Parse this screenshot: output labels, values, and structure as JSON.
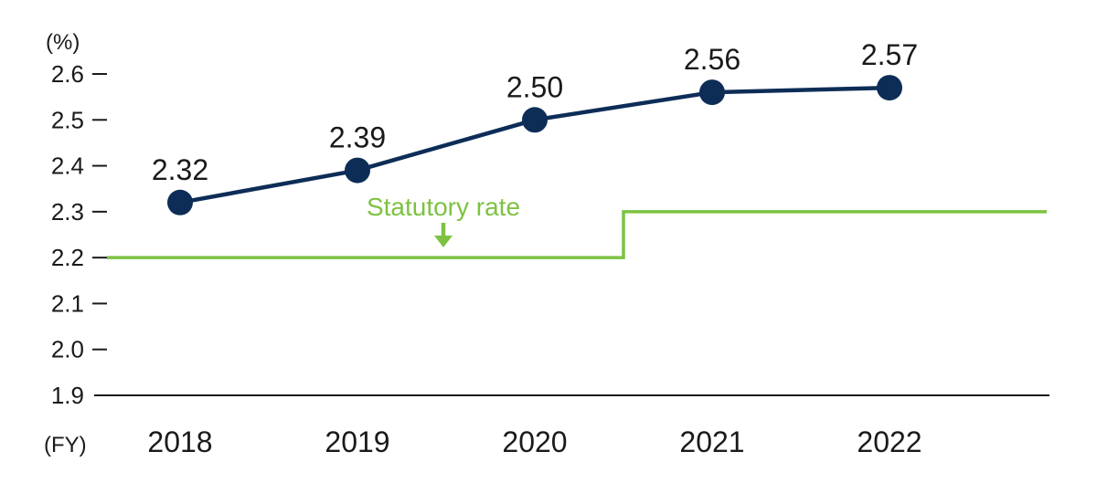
{
  "chart_data": {
    "type": "line",
    "y_unit": "(%)",
    "x_unit": "(FY)",
    "categories": [
      "2018",
      "2019",
      "2020",
      "2021",
      "2022"
    ],
    "series": [
      {
        "values": [
          2.32,
          2.39,
          2.5,
          2.56,
          2.57
        ],
        "labels": [
          "2.32",
          "2.39",
          "2.50",
          "2.56",
          "2.57"
        ],
        "color": "#0d2d57"
      }
    ],
    "statutory_rate": {
      "label": "Statutory rate",
      "color": "#7dc242",
      "before": 2.2,
      "after": 2.3,
      "change_between": [
        "2020",
        "2021"
      ]
    },
    "ylim": [
      1.9,
      2.6
    ],
    "yticks": [
      1.9,
      2.0,
      2.1,
      2.2,
      2.3,
      2.4,
      2.5,
      2.6
    ],
    "ytick_labels": [
      "1.9",
      "2.0",
      "2.1",
      "2.2",
      "2.3",
      "2.4",
      "2.5",
      "2.6"
    ],
    "grid": false,
    "legend": "none"
  }
}
